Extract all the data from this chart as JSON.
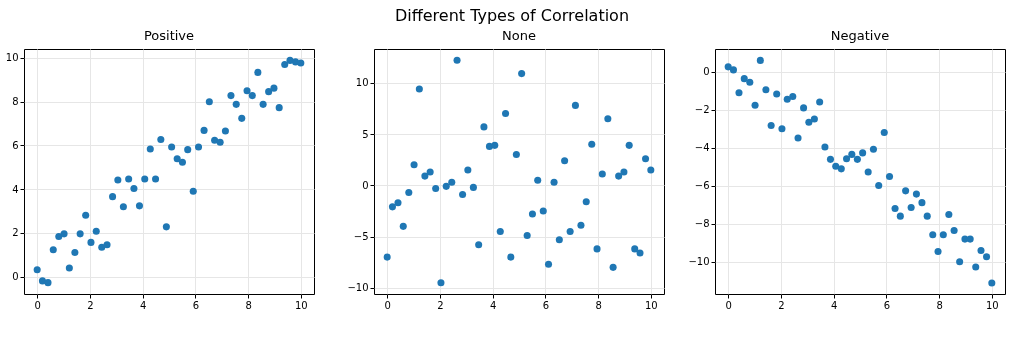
{
  "chart_data": [
    {
      "type": "scatter",
      "title": "Positive",
      "annotations": [
        "Different Types of Correlation"
      ],
      "marker": "circle",
      "grid": true,
      "x": [
        0,
        0.2,
        0.41,
        0.61,
        0.82,
        1.02,
        1.22,
        1.43,
        1.63,
        1.84,
        2.04,
        2.24,
        2.45,
        2.65,
        2.86,
        3.06,
        3.27,
        3.47,
        3.67,
        3.88,
        4.08,
        4.29,
        4.49,
        4.69,
        4.9,
        5.1,
        5.31,
        5.51,
        5.71,
        5.92,
        6.12,
        6.33,
        6.53,
        6.73,
        6.94,
        7.14,
        7.35,
        7.55,
        7.76,
        7.96,
        8.16,
        8.37,
        8.57,
        8.78,
        8.98,
        9.18,
        9.39,
        9.59,
        9.8,
        10
      ],
      "series": [
        {
          "color": "#1f77b4",
          "values": [
            0.31,
            -0.2,
            -0.28,
            1.22,
            1.83,
            1.95,
            0.39,
            1.1,
            1.95,
            2.8,
            1.56,
            2.07,
            1.34,
            1.45,
            3.65,
            4.41,
            3.19,
            4.46,
            4.02,
            3.23,
            4.46,
            5.83,
            4.46,
            6.26,
            2.27,
            5.92,
            5.38,
            5.22,
            5.8,
            3.9,
            5.92,
            6.68,
            7.99,
            6.23,
            6.14,
            6.65,
            8.27,
            7.87,
            7.23,
            8.49,
            8.27,
            9.33,
            7.87,
            8.45,
            8.61,
            7.72,
            9.69,
            9.88,
            9.81,
            9.76
          ]
        }
      ],
      "xlim": [
        -0.5,
        10.5
      ],
      "xticks": [
        0,
        2,
        4,
        6,
        8,
        10
      ],
      "ylim": [
        -0.8,
        10.4
      ],
      "yticks": [
        0,
        2,
        4,
        6,
        8,
        10
      ]
    },
    {
      "type": "scatter",
      "title": "None",
      "marker": "circle",
      "grid": true,
      "x": [
        0,
        0.2,
        0.41,
        0.61,
        0.82,
        1.02,
        1.22,
        1.43,
        1.63,
        1.84,
        2.04,
        2.24,
        2.45,
        2.65,
        2.86,
        3.06,
        3.27,
        3.47,
        3.67,
        3.88,
        4.08,
        4.29,
        4.49,
        4.69,
        4.9,
        5.1,
        5.31,
        5.51,
        5.71,
        5.92,
        6.12,
        6.33,
        6.53,
        6.73,
        6.94,
        7.14,
        7.35,
        7.55,
        7.76,
        7.96,
        8.16,
        8.37,
        8.57,
        8.78,
        8.98,
        9.18,
        9.39,
        9.59,
        9.8,
        10
      ],
      "series": [
        {
          "color": "#1f77b4",
          "values": [
            -7.0,
            -2.1,
            -1.7,
            -4.0,
            -0.7,
            2.0,
            9.4,
            0.9,
            1.3,
            -0.3,
            -9.5,
            -0.1,
            0.3,
            12.2,
            -0.9,
            1.5,
            -0.2,
            -5.8,
            5.7,
            3.8,
            3.9,
            -4.5,
            7.0,
            -7.0,
            3.0,
            10.9,
            -4.9,
            -2.8,
            0.5,
            -2.5,
            -7.7,
            0.3,
            -5.3,
            2.4,
            -4.5,
            7.8,
            -3.9,
            -1.6,
            4.0,
            -6.2,
            1.1,
            6.5,
            -8.0,
            0.9,
            1.3,
            3.9,
            -6.2,
            -6.6,
            2.6,
            1.5
          ]
        }
      ],
      "xlim": [
        -0.5,
        10.5
      ],
      "xticks": [
        0,
        2,
        4,
        6,
        8,
        10
      ],
      "ylim": [
        -10.6,
        13.3
      ],
      "yticks": [
        -10,
        -5,
        0,
        5,
        10
      ]
    },
    {
      "type": "scatter",
      "title": "Negative",
      "marker": "circle",
      "grid": true,
      "x": [
        0,
        0.2,
        0.41,
        0.61,
        0.82,
        1.02,
        1.22,
        1.43,
        1.63,
        1.84,
        2.04,
        2.24,
        2.45,
        2.65,
        2.86,
        3.06,
        3.27,
        3.47,
        3.67,
        3.88,
        4.08,
        4.29,
        4.49,
        4.69,
        4.9,
        5.1,
        5.31,
        5.51,
        5.71,
        5.92,
        6.12,
        6.33,
        6.53,
        6.73,
        6.94,
        7.14,
        7.35,
        7.55,
        7.76,
        7.96,
        8.16,
        8.37,
        8.57,
        8.78,
        8.98,
        9.18,
        9.39,
        9.59,
        9.8,
        10
      ],
      "series": [
        {
          "color": "#1f77b4",
          "values": [
            0.26,
            0.1,
            -1.1,
            -0.36,
            -0.55,
            -1.76,
            0.6,
            -0.95,
            -2.83,
            -1.17,
            -3.0,
            -1.45,
            -1.3,
            -3.49,
            -1.9,
            -2.66,
            -2.49,
            -1.59,
            -3.96,
            -4.61,
            -4.97,
            -5.11,
            -4.58,
            -4.35,
            -4.61,
            -4.27,
            -5.28,
            -4.08,
            -5.99,
            -3.2,
            -5.51,
            -7.2,
            -7.6,
            -6.27,
            -7.15,
            -6.44,
            -6.89,
            -7.6,
            -8.58,
            -9.46,
            -8.58,
            -7.51,
            -8.36,
            -10.0,
            -8.81,
            -8.81,
            -10.28,
            -9.41,
            -9.74,
            -11.12
          ]
        }
      ],
      "xlim": [
        -0.5,
        10.5
      ],
      "xticks": [
        0,
        2,
        4,
        6,
        8,
        10
      ],
      "ylim": [
        -11.7,
        1.2
      ],
      "yticks": [
        -10,
        -8,
        -6,
        -4,
        -2,
        0
      ]
    }
  ]
}
